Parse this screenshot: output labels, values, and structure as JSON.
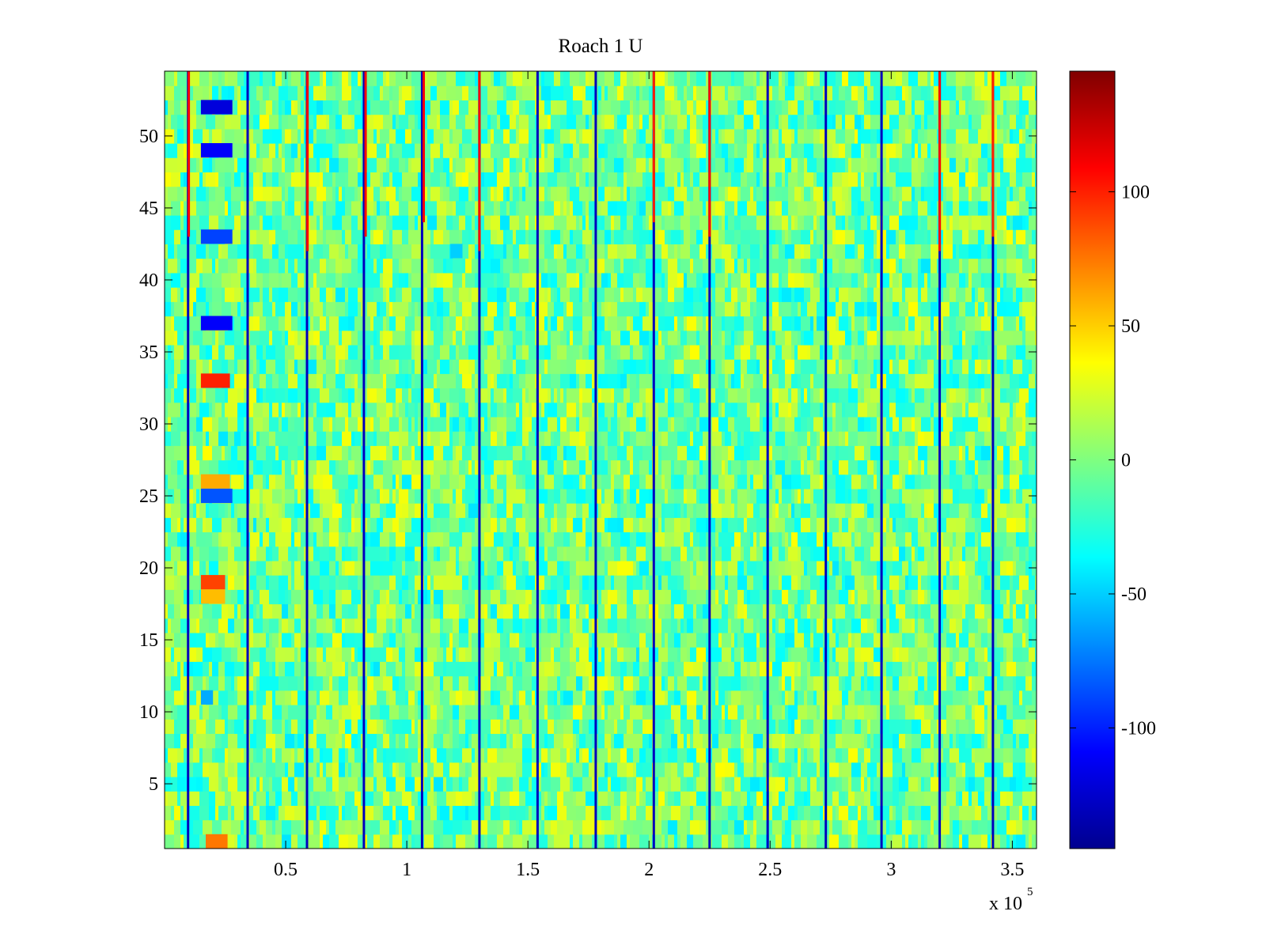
{
  "chart_data": {
    "type": "heatmap",
    "title": "Roach 1 U",
    "xlabel": "",
    "ylabel": "",
    "x_multiplier_label": "x 10",
    "x_multiplier_exponent": "5",
    "xlim": [
      0,
      3.6
    ],
    "ylim": [
      0.5,
      54.5
    ],
    "x_ticks": [
      0.5,
      1,
      1.5,
      2,
      2.5,
      3,
      3.5
    ],
    "x_tick_labels": [
      "0.5",
      "1",
      "1.5",
      "2",
      "2.5",
      "3",
      "3.5"
    ],
    "y_ticks": [
      5,
      10,
      15,
      20,
      25,
      30,
      35,
      40,
      45,
      50
    ],
    "y_tick_labels": [
      "5",
      "10",
      "15",
      "20",
      "25",
      "30",
      "35",
      "40",
      "45",
      "50"
    ],
    "rows": 54,
    "color_limits": [
      -145,
      145
    ],
    "colorbar_ticks": [
      -100,
      -50,
      0,
      50,
      100
    ],
    "colorbar_tick_labels": [
      "-100",
      "-50",
      "0",
      "50",
      "100"
    ],
    "colormap": "jet",
    "colormap_stops": [
      "#00008f",
      "#0000ff",
      "#00ffff",
      "#ffff00",
      "#ff0000",
      "#800000"
    ],
    "noise_range": [
      -40,
      40
    ],
    "periodic_negative_stripes_x": [
      0.097,
      0.343,
      0.588,
      0.823,
      1.063,
      1.3,
      1.54,
      1.78,
      2.02,
      2.25,
      2.49,
      2.73,
      2.96,
      3.2,
      3.42
    ],
    "stripe_value": -130,
    "red_stripe_fragments": [
      {
        "x": 0.1,
        "y_from": 43,
        "y_to": 54.5,
        "value": 110
      },
      {
        "x": 0.59,
        "y_from": 42,
        "y_to": 54.5,
        "value": 110
      },
      {
        "x": 0.83,
        "y_from": 43,
        "y_to": 54.5,
        "value": 105
      },
      {
        "x": 1.07,
        "y_from": 44,
        "y_to": 54.5,
        "value": 110
      },
      {
        "x": 1.3,
        "y_from": 42,
        "y_to": 54.5,
        "value": 110
      },
      {
        "x": 2.02,
        "y_from": 44,
        "y_to": 54.5,
        "value": 100
      },
      {
        "x": 2.25,
        "y_from": 43,
        "y_to": 54.5,
        "value": 110
      },
      {
        "x": 3.2,
        "y_from": 42,
        "y_to": 54.5,
        "value": 110
      },
      {
        "x": 3.42,
        "y_from": 43,
        "y_to": 54.5,
        "value": 100
      }
    ],
    "block_features": [
      {
        "x_from": 0.15,
        "x_to": 0.28,
        "y_from": 51.5,
        "y_to": 52.5,
        "value": -120
      },
      {
        "x_from": 0.15,
        "x_to": 0.28,
        "y_from": 48.5,
        "y_to": 49.5,
        "value": -110
      },
      {
        "x_from": 0.15,
        "x_to": 0.28,
        "y_from": 42.5,
        "y_to": 43.5,
        "value": -90
      },
      {
        "x_from": 0.15,
        "x_to": 0.28,
        "y_from": 36.5,
        "y_to": 37.5,
        "value": -110
      },
      {
        "x_from": 0.15,
        "x_to": 0.27,
        "y_from": 32.5,
        "y_to": 33.5,
        "value": 100
      },
      {
        "x_from": 0.15,
        "x_to": 0.27,
        "y_from": 25.5,
        "y_to": 26.5,
        "value": 60
      },
      {
        "x_from": 0.15,
        "x_to": 0.28,
        "y_from": 24.5,
        "y_to": 25.5,
        "value": -85
      },
      {
        "x_from": 0.15,
        "x_to": 0.25,
        "y_from": 18.5,
        "y_to": 19.5,
        "value": 90
      },
      {
        "x_from": 0.15,
        "x_to": 0.25,
        "y_from": 17.5,
        "y_to": 18.5,
        "value": 55
      },
      {
        "x_from": 0.15,
        "x_to": 0.2,
        "y_from": 10.5,
        "y_to": 11.5,
        "value": -60
      },
      {
        "x_from": 0.17,
        "x_to": 0.26,
        "y_from": 0.5,
        "y_to": 1.5,
        "value": 75
      },
      {
        "x_from": 1.18,
        "x_to": 1.23,
        "y_from": 41.5,
        "y_to": 42.5,
        "value": -50
      }
    ]
  }
}
